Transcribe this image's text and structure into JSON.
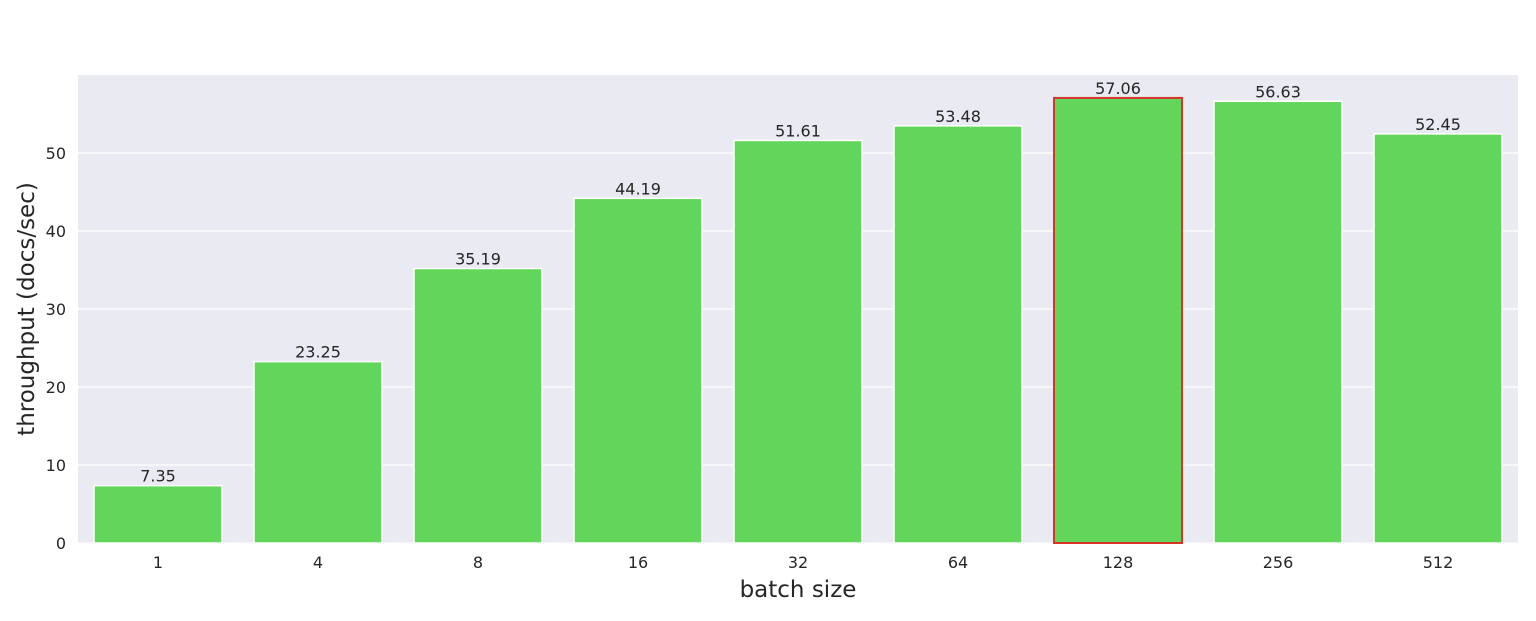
{
  "chart_data": {
    "type": "bar",
    "categories": [
      "1",
      "4",
      "8",
      "16",
      "32",
      "64",
      "128",
      "256",
      "512"
    ],
    "values": [
      7.35,
      23.25,
      35.19,
      44.19,
      51.61,
      53.48,
      57.06,
      56.63,
      52.45
    ],
    "value_labels": [
      "7.35",
      "23.25",
      "35.19",
      "44.19",
      "51.61",
      "53.48",
      "57.06",
      "56.63",
      "52.45"
    ],
    "xlabel": "batch size",
    "ylabel": "throughput (docs/sec)",
    "ylim": [
      0,
      60
    ],
    "yticks": [
      "0",
      "10",
      "20",
      "30",
      "40",
      "50"
    ],
    "grid": true,
    "bar_color": "#62d65a",
    "highlight_index": 6,
    "highlight_edge_color": "#d9342b",
    "plot_background": "#eaeaf2"
  }
}
